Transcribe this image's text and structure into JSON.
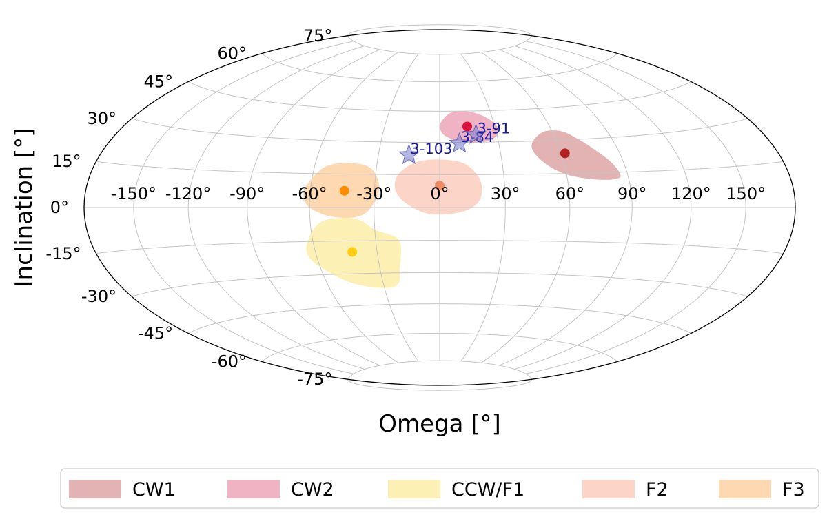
{
  "chart_data": {
    "type": "scatter",
    "projection": "hammer",
    "xlabel": "Omega [°]",
    "ylabel": "Inclination [°]",
    "longitude_ticks": [
      "-150°",
      "-120°",
      "-90°",
      "-60°",
      "-30°",
      "0°",
      "30°",
      "60°",
      "90°",
      "120°",
      "150°"
    ],
    "longitude_tick_values": [
      -150,
      -120,
      -90,
      -60,
      -30,
      0,
      30,
      60,
      90,
      120,
      150
    ],
    "latitude_ticks": [
      "-75°",
      "-60°",
      "-45°",
      "-30°",
      "-15°",
      "0°",
      "15°",
      "30°",
      "45°",
      "60°",
      "75°"
    ],
    "latitude_tick_values": [
      -75,
      -60,
      -45,
      -30,
      -15,
      0,
      15,
      30,
      45,
      60,
      75
    ],
    "grid": true,
    "legend_position": "bottom",
    "regions": [
      {
        "name": "CW1",
        "color": "#e3b2b3",
        "center_color": "#b22222",
        "center": [
          62,
          24
        ],
        "outline": [
          [
            47,
            29
          ],
          [
            55,
            34
          ],
          [
            65,
            34
          ],
          [
            72,
            30
          ],
          [
            78,
            25
          ],
          [
            84,
            19
          ],
          [
            86,
            13
          ],
          [
            76,
            12
          ],
          [
            62,
            14
          ],
          [
            53,
            18
          ],
          [
            47,
            24
          ]
        ]
      },
      {
        "name": "CW2",
        "color": "#f0b3c4",
        "center_color": "#dc143c",
        "center": [
          15,
          37.5
        ],
        "outline": [
          [
            1,
            40
          ],
          [
            6,
            44
          ],
          [
            14,
            45
          ],
          [
            24,
            43
          ],
          [
            31,
            38
          ],
          [
            30,
            33
          ],
          [
            22,
            30
          ],
          [
            12,
            30
          ],
          [
            3,
            33
          ],
          [
            0,
            37
          ]
        ]
      },
      {
        "name": "CCW/F1",
        "color": "#fdf0b4",
        "center_color": "#ffcc11",
        "center": [
          -42,
          -20
        ],
        "outline": [
          [
            -62,
            -14
          ],
          [
            -54,
            -6
          ],
          [
            -39,
            -5
          ],
          [
            -30,
            -10
          ],
          [
            -19,
            -15
          ],
          [
            -20,
            -28
          ],
          [
            -22,
            -35
          ],
          [
            -30,
            -37
          ],
          [
            -44,
            -35
          ],
          [
            -55,
            -30
          ],
          [
            -64,
            -22
          ]
        ]
      },
      {
        "name": "F2",
        "color": "#fcd5c8",
        "center_color": "#f08c64",
        "center": [
          0,
          10
        ],
        "outline": [
          [
            -20,
            14
          ],
          [
            -13,
            20
          ],
          [
            -2,
            22
          ],
          [
            12,
            20
          ],
          [
            19,
            12
          ],
          [
            18,
            3
          ],
          [
            10,
            -2
          ],
          [
            -4,
            -3
          ],
          [
            -14,
            1
          ],
          [
            -20,
            7
          ]
        ]
      },
      {
        "name": "F3",
        "color": "#fdd8b0",
        "center_color": "#ff8c00",
        "center": [
          -44,
          7.5
        ],
        "outline": [
          [
            -62,
            10
          ],
          [
            -55,
            18
          ],
          [
            -44,
            20
          ],
          [
            -33,
            18
          ],
          [
            -28,
            10
          ],
          [
            -30,
            2
          ],
          [
            -37,
            -4
          ],
          [
            -50,
            -4
          ],
          [
            -60,
            0
          ],
          [
            -63,
            5
          ]
        ]
      }
    ],
    "stars": [
      {
        "label": "3-103",
        "omega": -15,
        "inclination": 24
      },
      {
        "label": "3-84",
        "omega": 10,
        "inclination": 29.5
      },
      {
        "label": "3-91",
        "omega": 19,
        "inclination": 33.5
      }
    ]
  }
}
